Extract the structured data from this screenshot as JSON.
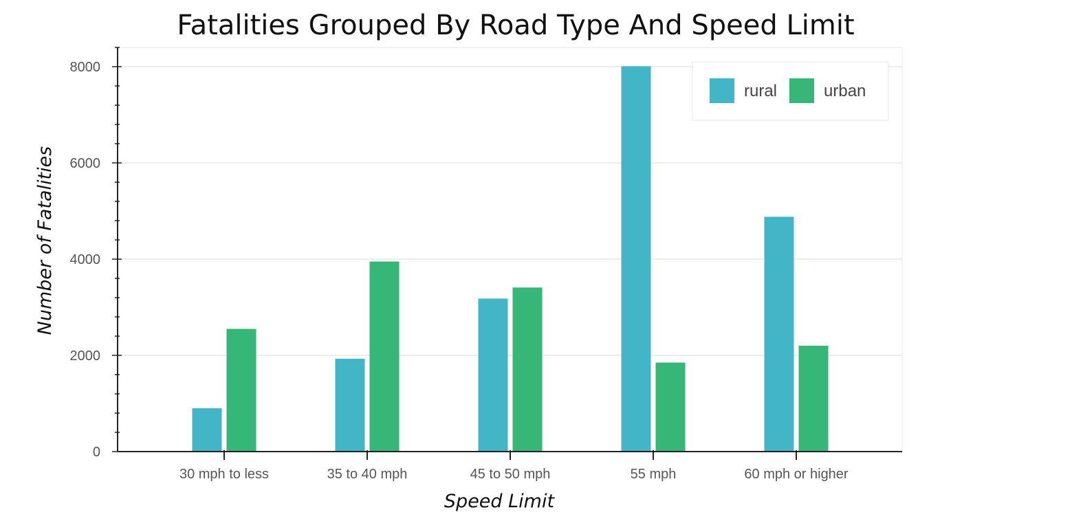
{
  "chart_data": {
    "type": "bar",
    "title": "Fatalities Grouped By Road Type And Speed Limit",
    "xlabel": "Speed Limit",
    "ylabel": "Number of Fatalities",
    "categories": [
      "30 mph to less",
      "35 to 40 mph",
      "45 to 50 mph",
      "55 mph",
      "60 mph or higher"
    ],
    "series": [
      {
        "name": "rural",
        "color": "#42b5c6",
        "values": [
          900,
          1930,
          3180,
          8010,
          4880
        ]
      },
      {
        "name": "urban",
        "color": "#36b677",
        "values": [
          2550,
          3950,
          3410,
          1850,
          2200
        ]
      }
    ],
    "ylim": [
      0,
      8400
    ],
    "yticks": [
      0,
      2000,
      4000,
      6000,
      8000
    ],
    "ytick_labels": [
      "0",
      "2000",
      "4000",
      "6000",
      "8000"
    ],
    "grid": true,
    "legend_position": "top-right"
  }
}
